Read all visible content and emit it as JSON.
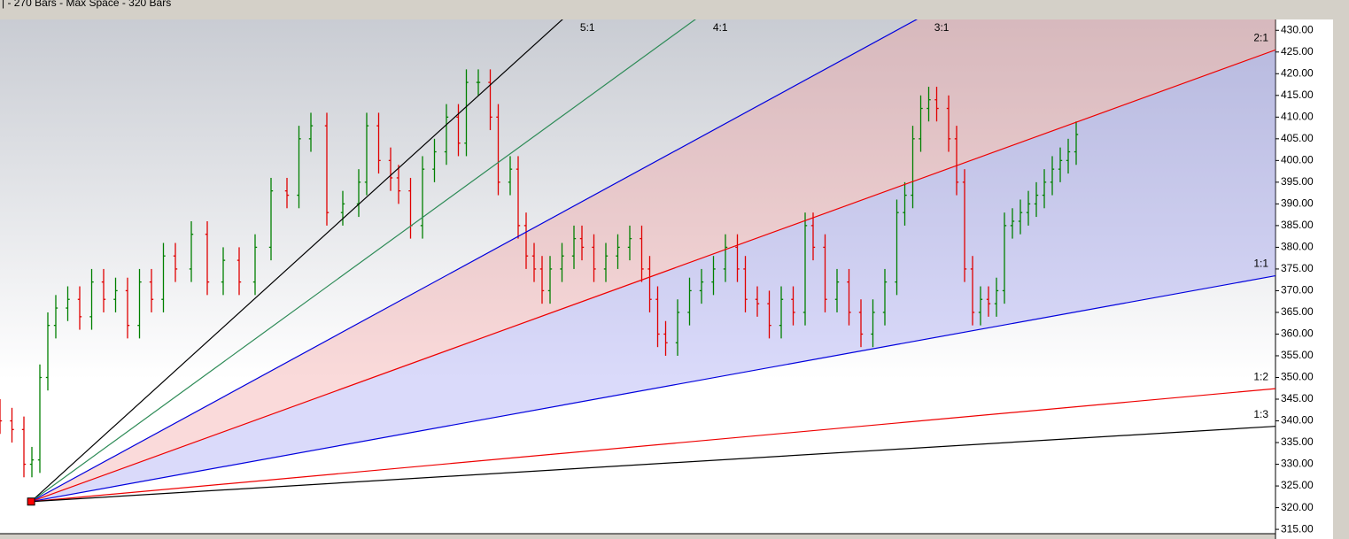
{
  "chart_data": {
    "type": "ohlc",
    "header": "| - 270 Bars -  Max Space - 320 Bars",
    "xlim": [
      0,
      320
    ],
    "ylim": [
      314,
      432.5
    ],
    "yticks": [
      {
        "value": 315,
        "label": "315.00"
      },
      {
        "value": 320,
        "label": "320.00"
      },
      {
        "value": 325,
        "label": "325.00"
      },
      {
        "value": 330,
        "label": "330.00"
      },
      {
        "value": 335,
        "label": "335.00"
      },
      {
        "value": 340,
        "label": "340.00"
      },
      {
        "value": 345,
        "label": "345.00"
      },
      {
        "value": 350,
        "label": "350.00"
      },
      {
        "value": 355,
        "label": "355.00"
      },
      {
        "value": 360,
        "label": "360.00"
      },
      {
        "value": 365,
        "label": "365.00"
      },
      {
        "value": 370,
        "label": "370.00"
      },
      {
        "value": 375,
        "label": "375.00"
      },
      {
        "value": 380,
        "label": "380.00"
      },
      {
        "value": 385,
        "label": "385.00"
      },
      {
        "value": 390,
        "label": "390.00"
      },
      {
        "value": 395,
        "label": "395.00"
      },
      {
        "value": 400,
        "label": "400.00"
      },
      {
        "value": 405,
        "label": "405.00"
      },
      {
        "value": 410,
        "label": "410.00"
      },
      {
        "value": 415,
        "label": "415.00"
      },
      {
        "value": 420,
        "label": "420.00"
      },
      {
        "value": 425,
        "label": "425.00"
      },
      {
        "value": 430,
        "label": "430.00"
      }
    ],
    "up_color": "#008000",
    "down_color": "#e00000",
    "x": [
      0,
      3,
      6,
      8,
      10,
      12,
      14,
      17,
      20,
      23,
      26,
      29,
      32,
      35,
      38,
      41,
      44,
      48,
      52,
      56,
      60,
      64,
      68,
      72,
      75,
      78,
      82,
      86,
      90,
      92,
      95,
      98,
      100,
      103,
      106,
      109,
      112,
      115,
      117,
      120,
      123,
      125,
      128,
      130,
      132,
      134,
      136,
      138,
      141,
      144,
      146,
      149,
      152,
      155,
      158,
      161,
      163,
      165,
      167,
      170,
      173,
      176,
      179,
      182,
      185,
      187,
      190,
      193,
      196,
      199,
      202,
      204,
      207,
      210,
      213,
      216,
      219,
      222,
      225,
      227,
      229,
      231,
      233,
      235,
      238,
      240,
      242,
      244,
      246,
      248,
      250,
      252,
      254,
      256,
      258,
      260,
      262,
      264,
      266,
      268,
      270
    ],
    "open": [
      342,
      340,
      338,
      330,
      331,
      350,
      362,
      366,
      368,
      364,
      372,
      368,
      370,
      362,
      372,
      368,
      378,
      375,
      383,
      372,
      377,
      372,
      380,
      393,
      392,
      405,
      408,
      388,
      390,
      395,
      408,
      400,
      396,
      393,
      385,
      398,
      402,
      410,
      404,
      418,
      418,
      410,
      395,
      398,
      385,
      378,
      375,
      370,
      375,
      378,
      382,
      380,
      375,
      378,
      380,
      382,
      375,
      368,
      360,
      358,
      365,
      370,
      372,
      375,
      380,
      375,
      368,
      367,
      362,
      368,
      365,
      385,
      380,
      368,
      372,
      365,
      360,
      365,
      372,
      388,
      392,
      405,
      412,
      414,
      412,
      405,
      395,
      375,
      365,
      368,
      367,
      370,
      385,
      386,
      388,
      390,
      392,
      395,
      398,
      400,
      402
    ],
    "high": [
      345,
      343,
      341,
      334,
      353,
      365,
      369,
      371,
      371,
      375,
      375,
      373,
      373,
      375,
      375,
      381,
      381,
      386,
      386,
      380,
      380,
      383,
      396,
      396,
      408,
      411,
      411,
      393,
      398,
      411,
      411,
      403,
      399,
      396,
      401,
      405,
      413,
      413,
      421,
      421,
      421,
      413,
      401,
      401,
      388,
      381,
      378,
      378,
      381,
      385,
      385,
      383,
      381,
      383,
      385,
      385,
      378,
      371,
      363,
      368,
      373,
      375,
      378,
      383,
      383,
      378,
      371,
      370,
      371,
      371,
      388,
      388,
      383,
      375,
      375,
      368,
      368,
      375,
      391,
      395,
      408,
      415,
      417,
      417,
      415,
      408,
      398,
      378,
      371,
      371,
      373,
      388,
      389,
      391,
      393,
      395,
      398,
      401,
      403,
      405,
      409
    ],
    "low": [
      337,
      335,
      327,
      327,
      328,
      347,
      359,
      363,
      361,
      361,
      365,
      365,
      359,
      359,
      365,
      365,
      372,
      372,
      369,
      369,
      369,
      369,
      377,
      389,
      389,
      402,
      385,
      385,
      387,
      392,
      397,
      393,
      390,
      382,
      382,
      395,
      399,
      401,
      401,
      415,
      407,
      392,
      392,
      382,
      375,
      372,
      367,
      367,
      372,
      375,
      377,
      372,
      372,
      375,
      377,
      372,
      365,
      357,
      355,
      355,
      362,
      367,
      369,
      372,
      372,
      365,
      364,
      359,
      359,
      362,
      362,
      377,
      365,
      365,
      362,
      357,
      357,
      362,
      369,
      385,
      389,
      402,
      409,
      409,
      402,
      392,
      372,
      362,
      362,
      364,
      364,
      367,
      382,
      383,
      385,
      387,
      389,
      392,
      395,
      397,
      399
    ],
    "close": [
      340,
      338,
      330,
      331,
      350,
      362,
      366,
      368,
      364,
      372,
      368,
      370,
      362,
      372,
      368,
      378,
      375,
      383,
      372,
      377,
      372,
      380,
      393,
      392,
      405,
      408,
      388,
      390,
      395,
      408,
      400,
      396,
      393,
      385,
      398,
      402,
      410,
      404,
      418,
      418,
      410,
      395,
      398,
      385,
      378,
      375,
      370,
      375,
      378,
      382,
      380,
      375,
      378,
      380,
      382,
      375,
      368,
      360,
      358,
      365,
      370,
      372,
      375,
      380,
      375,
      368,
      367,
      362,
      368,
      365,
      385,
      380,
      368,
      372,
      365,
      360,
      365,
      372,
      388,
      392,
      405,
      412,
      414,
      412,
      405,
      395,
      375,
      365,
      368,
      367,
      370,
      385,
      386,
      388,
      390,
      392,
      395,
      398,
      400,
      402,
      406
    ],
    "fan": {
      "origin_x": 7.8,
      "origin_price": 321.4,
      "origin_color": "#ff0000",
      "unit": 0.1667,
      "lines": [
        {
          "name": "5:1",
          "ratio": 5,
          "color": "#000000"
        },
        {
          "name": "4:1",
          "ratio": 4,
          "color": "#2e8b57"
        },
        {
          "name": "3:1",
          "ratio": 3,
          "color": "#0000dd"
        },
        {
          "name": "2:1",
          "ratio": 2,
          "color": "#ee0000"
        },
        {
          "name": "1:1",
          "ratio": 1,
          "color": "#0000dd"
        },
        {
          "name": "1:2",
          "ratio": 0.5,
          "color": "#ee0000"
        },
        {
          "name": "1:3",
          "ratio": 0.3333,
          "color": "#000000"
        }
      ],
      "fills": [
        {
          "between": [
            2,
            3
          ],
          "color": "rgba(240,150,150,0.35)"
        },
        {
          "between": [
            3,
            4
          ],
          "color": "rgba(150,150,240,0.35)"
        }
      ]
    }
  }
}
